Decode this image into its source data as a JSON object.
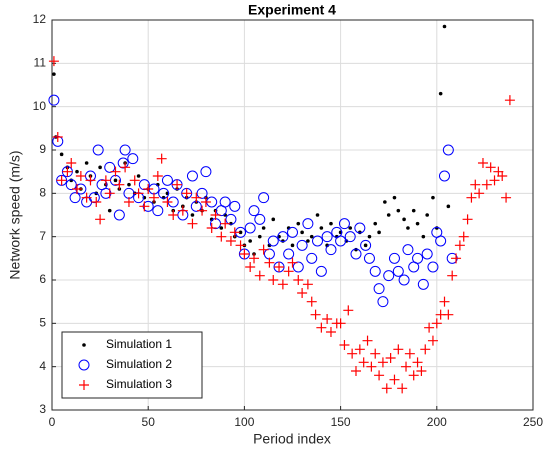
{
  "chart_data": {
    "type": "scatter",
    "title": "Experiment 4",
    "x_label": "Period index",
    "y_label": "Network speed (m/s)",
    "xlim": [
      0,
      250
    ],
    "xticks": [
      0,
      50,
      100,
      150,
      200,
      250
    ],
    "ylim": [
      3,
      12
    ],
    "yticks": [
      3,
      4,
      5,
      6,
      7,
      8,
      9,
      10,
      11,
      12
    ],
    "grid": true,
    "legend": "lower left",
    "series": [
      {
        "name": "Simulation 1",
        "color": "#000000",
        "marker": "dot",
        "x": [
          1,
          2,
          5,
          8,
          10,
          13,
          15,
          18,
          20,
          23,
          25,
          28,
          30,
          33,
          35,
          38,
          40,
          43,
          45,
          48,
          50,
          53,
          55,
          58,
          60,
          63,
          65,
          68,
          70,
          73,
          75,
          78,
          80,
          83,
          85,
          88,
          90,
          93,
          95,
          98,
          100,
          103,
          105,
          108,
          110,
          113,
          115,
          118,
          120,
          123,
          125,
          128,
          130,
          133,
          135,
          138,
          140,
          143,
          145,
          148,
          150,
          153,
          155,
          158,
          160,
          163,
          165,
          168,
          170,
          173,
          175,
          178,
          180,
          183,
          185,
          188,
          190,
          193,
          195,
          198,
          200,
          202,
          204,
          206
        ],
        "values": [
          10.75,
          9.3,
          8.9,
          8.6,
          8.3,
          8.5,
          8.1,
          8.7,
          8.4,
          8.0,
          8.6,
          8.2,
          7.6,
          8.3,
          8.1,
          8.7,
          8.2,
          8.0,
          8.4,
          7.9,
          8.1,
          7.8,
          8.2,
          7.9,
          8.0,
          7.6,
          8.1,
          7.7,
          7.9,
          7.5,
          7.8,
          7.6,
          7.9,
          7.4,
          7.6,
          7.2,
          7.5,
          7.3,
          7.0,
          7.1,
          6.8,
          6.9,
          6.6,
          7.0,
          7.2,
          6.8,
          7.4,
          7.0,
          6.9,
          7.2,
          6.8,
          7.3,
          7.1,
          6.9,
          7.0,
          7.5,
          7.2,
          6.8,
          7.3,
          7.0,
          7.1,
          6.9,
          7.2,
          6.7,
          7.1,
          6.8,
          7.0,
          7.3,
          7.1,
          7.8,
          7.5,
          7.9,
          7.6,
          7.4,
          7.2,
          7.6,
          7.3,
          7.0,
          7.5,
          7.9,
          7.2,
          10.3,
          11.85,
          7.7
        ]
      },
      {
        "name": "Simulation 2",
        "color": "#0000ff",
        "marker": "circle",
        "x": [
          1,
          3,
          5,
          8,
          10,
          12,
          15,
          18,
          20,
          22,
          24,
          26,
          28,
          30,
          33,
          35,
          37,
          38,
          40,
          42,
          45,
          48,
          50,
          53,
          55,
          58,
          60,
          63,
          65,
          68,
          70,
          73,
          75,
          78,
          80,
          83,
          85,
          88,
          90,
          93,
          95,
          98,
          100,
          103,
          105,
          108,
          110,
          113,
          115,
          118,
          120,
          123,
          125,
          128,
          130,
          133,
          135,
          138,
          140,
          143,
          145,
          148,
          150,
          152,
          155,
          158,
          160,
          163,
          165,
          168,
          170,
          172,
          175,
          178,
          180,
          183,
          185,
          188,
          190,
          193,
          195,
          198,
          200,
          202,
          204,
          206,
          208
        ],
        "values": [
          10.15,
          9.2,
          8.3,
          8.5,
          8.2,
          7.9,
          8.1,
          7.8,
          8.4,
          7.9,
          9.0,
          8.2,
          8.0,
          8.6,
          8.3,
          7.5,
          8.7,
          9.0,
          8.0,
          8.8,
          7.9,
          8.2,
          7.7,
          8.1,
          7.6,
          8.0,
          8.3,
          7.8,
          8.2,
          7.5,
          8.0,
          8.4,
          7.7,
          8.0,
          8.5,
          7.8,
          7.3,
          7.6,
          7.8,
          7.4,
          7.7,
          7.1,
          6.6,
          7.2,
          7.6,
          7.4,
          7.9,
          6.6,
          6.9,
          6.3,
          7.0,
          6.6,
          7.1,
          6.3,
          6.8,
          7.3,
          6.5,
          6.9,
          6.2,
          7.0,
          6.7,
          7.1,
          6.9,
          7.3,
          7.0,
          6.6,
          7.2,
          6.8,
          6.5,
          6.2,
          5.8,
          5.5,
          6.1,
          6.5,
          6.2,
          6.0,
          6.7,
          6.3,
          6.5,
          5.9,
          6.6,
          6.3,
          7.1,
          6.9,
          8.4,
          9.0,
          6.5
        ]
      },
      {
        "name": "Simulation 3",
        "color": "#ff0000",
        "marker": "plus",
        "x": [
          1,
          3,
          5,
          8,
          10,
          13,
          15,
          18,
          20,
          23,
          25,
          28,
          30,
          33,
          35,
          38,
          40,
          43,
          45,
          48,
          50,
          53,
          55,
          57,
          60,
          63,
          65,
          68,
          70,
          73,
          75,
          78,
          80,
          83,
          85,
          88,
          90,
          93,
          95,
          98,
          100,
          103,
          105,
          108,
          110,
          113,
          115,
          118,
          120,
          123,
          125,
          128,
          130,
          133,
          135,
          137,
          140,
          143,
          145,
          148,
          150,
          152,
          154,
          156,
          158,
          160,
          162,
          164,
          166,
          168,
          170,
          172,
          174,
          176,
          178,
          180,
          182,
          184,
          186,
          188,
          190,
          192,
          194,
          196,
          198,
          200,
          202,
          204,
          206,
          208,
          210,
          212,
          214,
          216,
          218,
          220,
          222,
          224,
          226,
          228,
          230,
          232,
          234,
          236,
          238
        ],
        "values": [
          11.05,
          9.3,
          8.3,
          8.5,
          8.7,
          8.1,
          8.4,
          7.9,
          8.3,
          7.8,
          7.4,
          8.3,
          8.0,
          8.5,
          8.2,
          8.6,
          7.8,
          8.3,
          8.0,
          7.7,
          8.1,
          7.9,
          8.4,
          8.8,
          7.8,
          7.5,
          8.2,
          7.6,
          8.0,
          7.3,
          7.9,
          7.6,
          7.8,
          7.2,
          7.5,
          7.0,
          7.3,
          6.9,
          7.1,
          6.8,
          6.6,
          6.3,
          6.5,
          6.1,
          6.7,
          6.4,
          6.0,
          6.3,
          5.9,
          6.2,
          6.4,
          6.0,
          5.7,
          5.9,
          5.5,
          5.2,
          4.9,
          5.1,
          4.8,
          5.0,
          5.0,
          4.5,
          5.3,
          4.3,
          3.9,
          4.4,
          4.1,
          4.6,
          4.0,
          4.3,
          3.8,
          4.1,
          3.5,
          4.2,
          3.7,
          4.4,
          3.5,
          4.0,
          4.3,
          3.8,
          4.1,
          3.9,
          4.4,
          4.9,
          4.6,
          5.0,
          5.2,
          5.5,
          5.2,
          6.1,
          6.5,
          6.8,
          7.0,
          7.4,
          7.9,
          8.2,
          8.0,
          8.7,
          8.2,
          8.6,
          8.3,
          8.5,
          8.4,
          7.9,
          10.15
        ]
      }
    ]
  }
}
